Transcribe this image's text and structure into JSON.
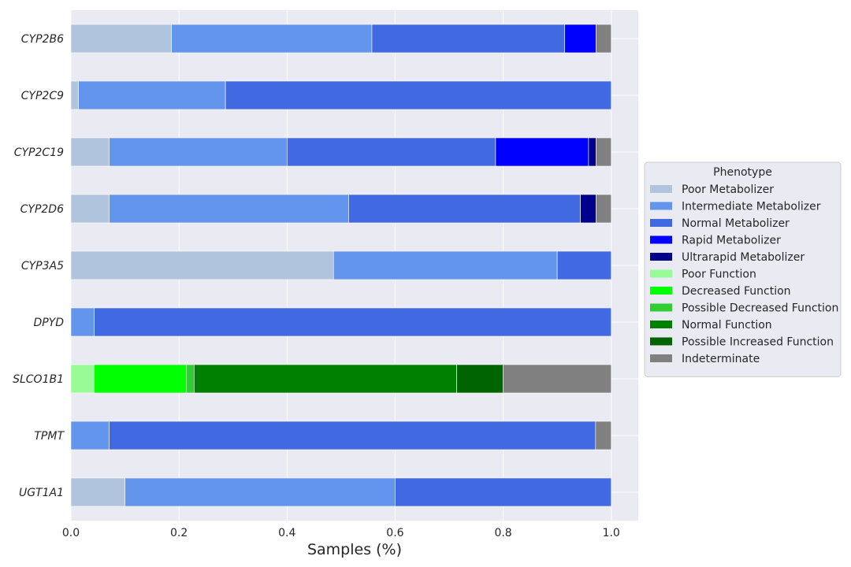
{
  "chart_data": {
    "type": "bar",
    "orientation": "horizontal",
    "stacked": true,
    "xlabel": "Samples (%)",
    "ylabel": "",
    "xlim": [
      0,
      1.05
    ],
    "xticks": [
      0.0,
      0.2,
      0.4,
      0.6,
      0.8,
      1.0
    ],
    "xtick_labels": [
      "0.0",
      "0.2",
      "0.4",
      "0.6",
      "0.8",
      "1.0"
    ],
    "grid": true,
    "legend_position": "center-right",
    "legend_title": "Phenotype",
    "categories": [
      "CYP2B6",
      "CYP2C9",
      "CYP2C19",
      "CYP2D6",
      "CYP3A5",
      "DPYD",
      "SLCO1B1",
      "TPMT",
      "UGT1A1"
    ],
    "series": [
      {
        "name": "Poor Metabolizer",
        "color": "#b0c4de",
        "values": [
          0.186,
          0.014,
          0.071,
          0.071,
          0.486,
          0,
          0,
          0,
          0.1
        ]
      },
      {
        "name": "Intermediate Metabolizer",
        "color": "#6495ed",
        "values": [
          0.371,
          0.272,
          0.329,
          0.443,
          0.414,
          0.043,
          0,
          0.071,
          0.5
        ]
      },
      {
        "name": "Normal Metabolizer",
        "color": "#4169e1",
        "values": [
          0.357,
          0.714,
          0.386,
          0.429,
          0.1,
          0.957,
          0,
          0.9,
          0.4
        ]
      },
      {
        "name": "Rapid Metabolizer",
        "color": "#0000ff",
        "values": [
          0.058,
          0,
          0.172,
          0,
          0,
          0,
          0,
          0,
          0
        ]
      },
      {
        "name": "Ultrarapid Metabolizer",
        "color": "#00008b",
        "values": [
          0,
          0,
          0.014,
          0.029,
          0,
          0,
          0,
          0,
          0
        ]
      },
      {
        "name": "Poor Function",
        "color": "#98fb98",
        "values": [
          0,
          0,
          0,
          0,
          0,
          0,
          0.043,
          0,
          0
        ]
      },
      {
        "name": "Decreased Function",
        "color": "#00ff00",
        "values": [
          0,
          0,
          0,
          0,
          0,
          0,
          0.171,
          0,
          0
        ]
      },
      {
        "name": "Possible Decreased Function",
        "color": "#32cd32",
        "values": [
          0,
          0,
          0,
          0,
          0,
          0,
          0.014,
          0,
          0
        ]
      },
      {
        "name": "Normal Function",
        "color": "#008000",
        "values": [
          0,
          0,
          0,
          0,
          0,
          0,
          0.486,
          0,
          0
        ]
      },
      {
        "name": "Possible Increased Function",
        "color": "#006400",
        "values": [
          0,
          0,
          0,
          0,
          0,
          0,
          0.086,
          0,
          0
        ]
      },
      {
        "name": "Indeterminate",
        "color": "#808080",
        "values": [
          0.028,
          0,
          0.028,
          0.028,
          0,
          0,
          0.2,
          0.029,
          0
        ]
      }
    ]
  },
  "style": {
    "plot_background": "#eaeaf2",
    "grid_color": "#ffffff",
    "legend_background": "#eaeaf2",
    "legend_border": "#cccccc",
    "text_color": "#262626"
  }
}
